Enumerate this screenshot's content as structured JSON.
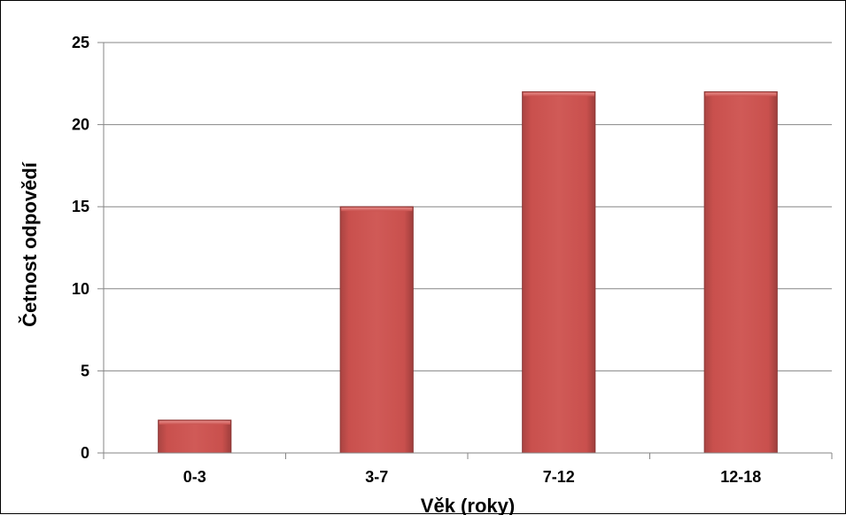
{
  "chart_data": {
    "type": "bar",
    "title": "",
    "categories": [
      "0-3",
      "3-7",
      "7-12",
      "12-18"
    ],
    "values": [
      2,
      15,
      22,
      22
    ],
    "xlabel": "Věk (roky)",
    "ylabel": "Četnost odpovědí",
    "ylim": [
      0,
      25
    ],
    "yticks": [
      "0",
      "5",
      "10",
      "15",
      "20",
      "25"
    ],
    "grid": true,
    "legend": "none",
    "bar_color": "#C0504D",
    "bar_border_color": "#8C3836",
    "grid_color": "#868686"
  }
}
